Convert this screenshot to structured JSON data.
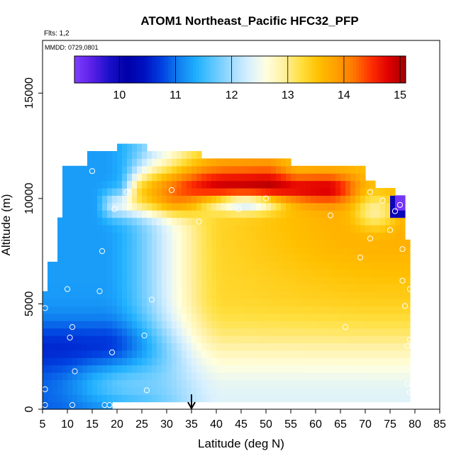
{
  "chart_data": {
    "type": "heatmap",
    "title": "ATOM1 Northeast_Pacific HFC32_PFP",
    "subtitle_flights": "Flts: 1,2",
    "subtitle_dates": "MMDD: 0729,0801",
    "xlabel": "Latitude (deg N)",
    "ylabel": "Altitude (m)",
    "xlim": [
      5,
      85
    ],
    "ylim": [
      0,
      17500
    ],
    "x_ticks": [
      "5",
      "10",
      "15",
      "20",
      "25",
      "30",
      "35",
      "40",
      "45",
      "50",
      "55",
      "60",
      "65",
      "70",
      "75",
      "80",
      "85"
    ],
    "y_ticks": [
      "0",
      "5000",
      "10000",
      "15000"
    ],
    "colorbar": {
      "range": [
        9.2,
        15.1
      ],
      "tick_labels": [
        "10",
        "11",
        "12",
        "13",
        "14",
        "15"
      ],
      "colors": [
        "#7f3fff",
        "#5a20e8",
        "#1a10c8",
        "#0000a8",
        "#0010c0",
        "#0040e0",
        "#1080f0",
        "#20b0ff",
        "#60c8ff",
        "#a0dcff",
        "#d8f0ff",
        "#ffffe0",
        "#fff0a0",
        "#ffe040",
        "#ffc000",
        "#ffa000",
        "#ff7800",
        "#ff3000",
        "#e00000",
        "#a00000"
      ]
    },
    "marker": {
      "label": "arrow",
      "latitude": 35
    },
    "sample_points": [
      [
        5.5,
        200
      ],
      [
        5.5,
        950
      ],
      [
        5.5,
        4800
      ],
      [
        8,
        11300
      ],
      [
        10,
        5700
      ],
      [
        10.5,
        3400
      ],
      [
        11,
        3900
      ],
      [
        11,
        200
      ],
      [
        11.5,
        1800
      ],
      [
        15,
        11300
      ],
      [
        16.5,
        5600
      ],
      [
        17,
        7500
      ],
      [
        17.5,
        200
      ],
      [
        18.5,
        200
      ],
      [
        19,
        2700
      ],
      [
        19.5,
        9500
      ],
      [
        22,
        10300
      ],
      [
        25.5,
        3500
      ],
      [
        26,
        900
      ],
      [
        27,
        5200
      ],
      [
        27.5,
        12700
      ],
      [
        31,
        10400
      ],
      [
        36.5,
        8900
      ],
      [
        44.5,
        9500
      ],
      [
        50,
        10000
      ],
      [
        63,
        9200
      ],
      [
        66,
        3900
      ],
      [
        69,
        7200
      ],
      [
        71,
        10300
      ],
      [
        71,
        8100
      ],
      [
        73.5,
        9900
      ],
      [
        75,
        8500
      ],
      [
        76,
        9400
      ],
      [
        77,
        9700
      ],
      [
        77.5,
        7600
      ],
      [
        77.5,
        6100
      ],
      [
        78,
        4900
      ],
      [
        78.5,
        1200
      ],
      [
        78.5,
        3000
      ],
      [
        79,
        3300
      ],
      [
        79,
        800
      ],
      [
        79,
        5700
      ]
    ],
    "grid": "off",
    "legend": "colorbar top"
  }
}
